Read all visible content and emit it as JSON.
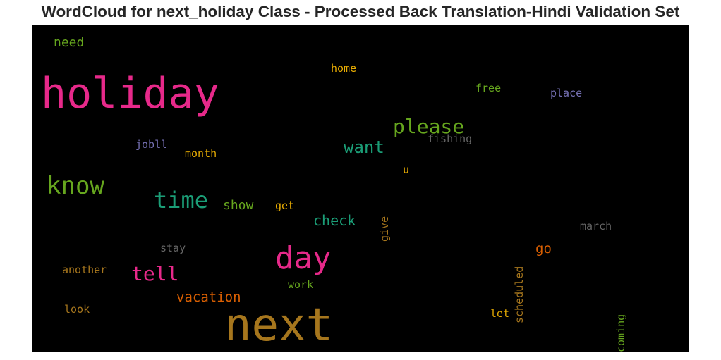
{
  "chart_data": {
    "type": "wordcloud",
    "title": "WordCloud for next_holiday Class - Processed Back Translation-Hindi Validation Set",
    "background": "#000000",
    "words": [
      {
        "text": "next",
        "color": "#a6761d"
      },
      {
        "text": "holiday",
        "color": "#e7298a"
      },
      {
        "text": "day",
        "color": "#e7298a"
      },
      {
        "text": "know",
        "color": "#66a61e"
      },
      {
        "text": "time",
        "color": "#1b9e77"
      },
      {
        "text": "please",
        "color": "#66a61e"
      },
      {
        "text": "tell",
        "color": "#e7298a"
      },
      {
        "text": "want",
        "color": "#1b9e77"
      },
      {
        "text": "check",
        "color": "#1b9e77"
      },
      {
        "text": "vacation",
        "color": "#d95f02"
      },
      {
        "text": "go",
        "color": "#d95f02"
      },
      {
        "text": "show",
        "color": "#66a61e"
      },
      {
        "text": "need",
        "color": "#66a61e"
      },
      {
        "text": "home",
        "color": "#e6ab02"
      },
      {
        "text": "free",
        "color": "#66a61e"
      },
      {
        "text": "place",
        "color": "#7570b3"
      },
      {
        "text": "jobll",
        "color": "#7570b3"
      },
      {
        "text": "month",
        "color": "#e6ab02"
      },
      {
        "text": "fishing",
        "color": "#666666"
      },
      {
        "text": "u",
        "color": "#e6ab02"
      },
      {
        "text": "get",
        "color": "#e6ab02"
      },
      {
        "text": "give",
        "color": "#a6761d"
      },
      {
        "text": "march",
        "color": "#666666"
      },
      {
        "text": "stay",
        "color": "#666666"
      },
      {
        "text": "another",
        "color": "#a6761d"
      },
      {
        "text": "work",
        "color": "#66a61e"
      },
      {
        "text": "look",
        "color": "#a6761d"
      },
      {
        "text": "let",
        "color": "#e6ab02"
      },
      {
        "text": "scheduled",
        "color": "#a6761d"
      },
      {
        "text": "coming",
        "color": "#66a61e"
      }
    ]
  }
}
